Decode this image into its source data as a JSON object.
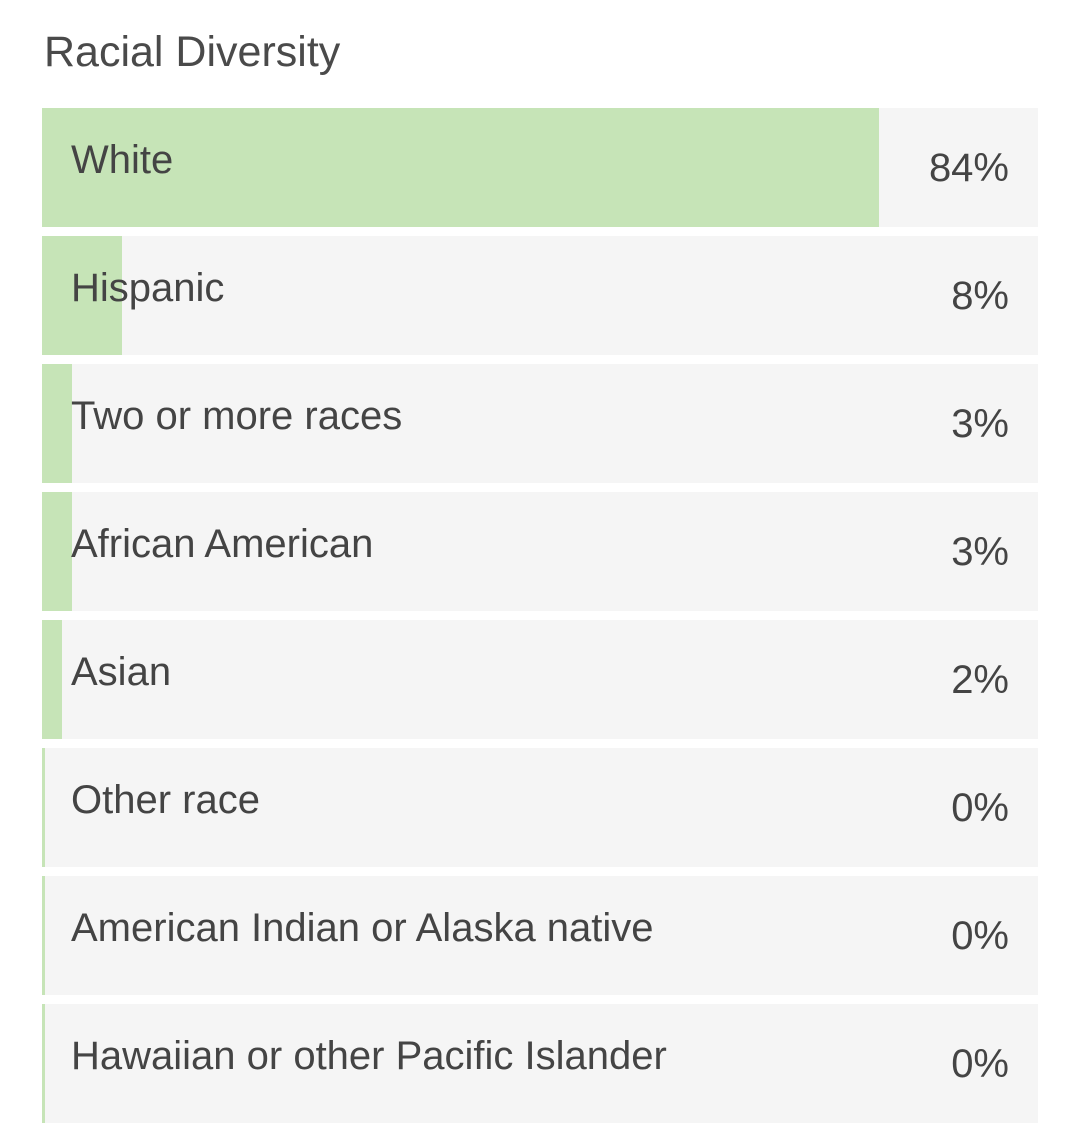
{
  "chart_data": {
    "type": "bar",
    "orientation": "horizontal",
    "title": "Racial Diversity",
    "categories": [
      "White",
      "Hispanic",
      "Two or more races",
      "African American",
      "Asian",
      "Other race",
      "American Indian or Alaska native",
      "Hawaiian or other Pacific Islander"
    ],
    "values": [
      84,
      8,
      3,
      3,
      2,
      0,
      0,
      0
    ],
    "value_labels": [
      "84%",
      "8%",
      "3%",
      "3%",
      "2%",
      "0%",
      "0%",
      "0%"
    ],
    "xlim": [
      0,
      100
    ],
    "bar_color": "#c6e4b7",
    "track_color": "#f5f5f5"
  }
}
